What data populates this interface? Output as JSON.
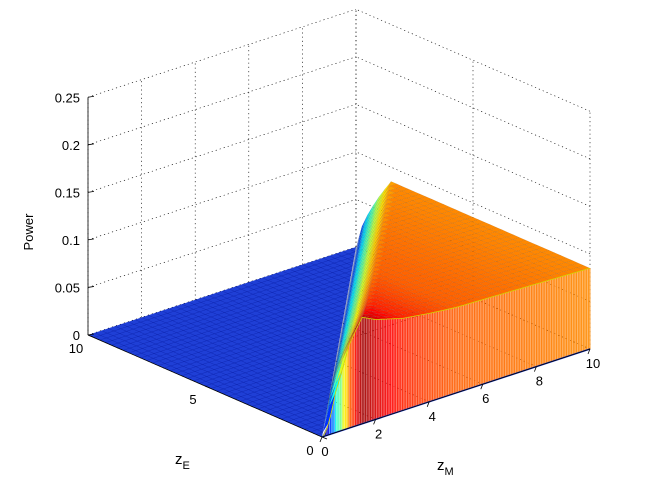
{
  "chart_data": {
    "type": "surface",
    "zlabel": "Power",
    "xlabel": {
      "main": "z",
      "sub": "M"
    },
    "ylabel": {
      "main": "z",
      "sub": "E"
    },
    "xlim": [
      0,
      10
    ],
    "ylim": [
      0,
      10
    ],
    "zlim": [
      0,
      0.25
    ],
    "xticks": [
      "0",
      "2",
      "4",
      "6",
      "8",
      "10"
    ],
    "yticks": [
      "0",
      "5",
      "10"
    ],
    "zticks": [
      "0",
      "0.05",
      "0.1",
      "0.15",
      "0.2",
      "0.25"
    ],
    "grid": true,
    "colormap": "jet",
    "colors": {
      "surface_zero": "#1f3fd6",
      "mesh_line": "#0a1fa8"
    },
    "surface_description": "Power(zM,zE) is zero when zE >= zM; along zE = 0 it rises from 0 at zM = 0 to a peak near 0.115 around zM = 1.1, then declines toward about 0.085 at zM = 10.",
    "profile_zE0": {
      "zM": [
        0,
        0.5,
        1.0,
        1.5,
        2,
        3,
        4,
        5,
        6,
        7,
        8,
        9,
        10
      ],
      "power": [
        0,
        0.09,
        0.115,
        0.112,
        0.105,
        0.097,
        0.093,
        0.09,
        0.089,
        0.088,
        0.087,
        0.086,
        0.085
      ]
    }
  }
}
